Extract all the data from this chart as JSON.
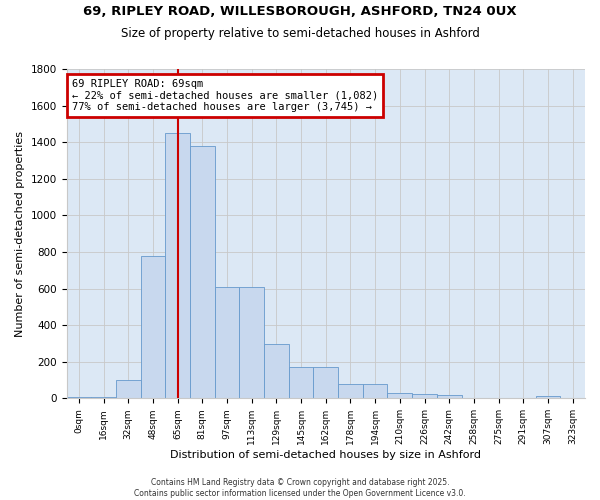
{
  "title_line1": "69, RIPLEY ROAD, WILLESBOROUGH, ASHFORD, TN24 0UX",
  "title_line2": "Size of property relative to semi-detached houses in Ashford",
  "xlabel": "Distribution of semi-detached houses by size in Ashford",
  "ylabel": "Number of semi-detached properties",
  "bar_labels": [
    "0sqm",
    "16sqm",
    "32sqm",
    "48sqm",
    "65sqm",
    "81sqm",
    "97sqm",
    "113sqm",
    "129sqm",
    "145sqm",
    "162sqm",
    "178sqm",
    "194sqm",
    "210sqm",
    "226sqm",
    "242sqm",
    "258sqm",
    "275sqm",
    "291sqm",
    "307sqm",
    "323sqm"
  ],
  "bar_values": [
    5,
    10,
    100,
    780,
    1450,
    1380,
    610,
    610,
    295,
    170,
    170,
    80,
    80,
    30,
    25,
    20,
    0,
    0,
    0,
    15,
    0
  ],
  "bar_color": "#c8d8ee",
  "bar_edge_color": "#6699cc",
  "property_label_top": "69 RIPLEY ROAD: 69sqm",
  "annotation_smaller": "← 22% of semi-detached houses are smaller (1,082)",
  "annotation_larger": "77% of semi-detached houses are larger (3,745) →",
  "annotation_box_color": "#ffffff",
  "annotation_box_edge_color": "#cc0000",
  "vline_color": "#cc0000",
  "vline_x_index": 4,
  "ylim_max": 1800,
  "yticks": [
    0,
    200,
    400,
    600,
    800,
    1000,
    1200,
    1400,
    1600,
    1800
  ],
  "grid_color": "#c8c8c8",
  "bg_color": "#dce8f5",
  "footer_line1": "Contains HM Land Registry data © Crown copyright and database right 2025.",
  "footer_line2": "Contains public sector information licensed under the Open Government Licence v3.0."
}
